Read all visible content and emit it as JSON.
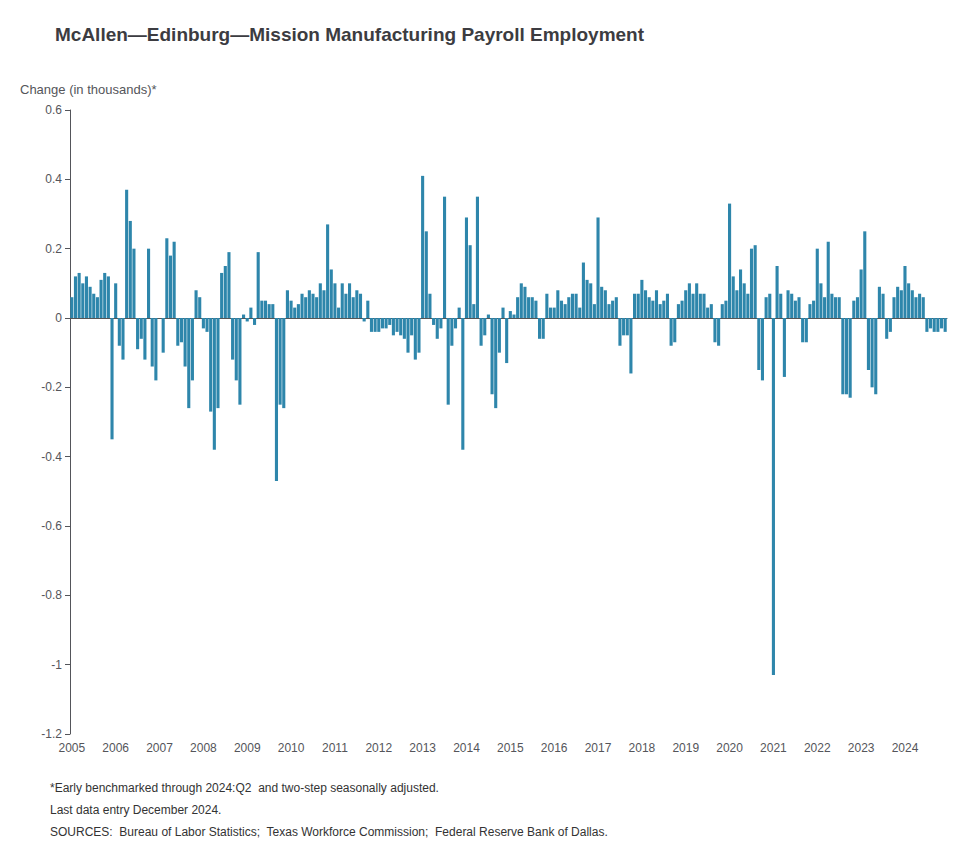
{
  "chart_data": {
    "type": "bar",
    "title": "McAllen—Edinburg—Mission Manufacturing Payroll Employment",
    "ylabel": "Change (in thousands)*",
    "annotations": [
      "*Early benchmarked through 2024:Q2  and two-step seasonally adjusted.",
      "Last data entry December 2024.",
      "SOURCES:  Bureau of Labor Statistics;  Texas Workforce Commission;  Federal Reserve Bank of Dallas."
    ],
    "color": "#2e86ab",
    "grid": false,
    "ylim": [
      -1.2,
      0.6
    ],
    "yticks": [
      -1.2,
      -1,
      -0.8,
      -0.6,
      -0.4,
      -0.2,
      0,
      0.2,
      0.4,
      0.6
    ],
    "categories": [
      "2005",
      null,
      null,
      null,
      null,
      null,
      null,
      null,
      null,
      null,
      null,
      null,
      "2006",
      null,
      null,
      null,
      null,
      null,
      null,
      null,
      null,
      null,
      null,
      null,
      "2007",
      null,
      null,
      null,
      null,
      null,
      null,
      null,
      null,
      null,
      null,
      null,
      "2008",
      null,
      null,
      null,
      null,
      null,
      null,
      null,
      null,
      null,
      null,
      null,
      "2009",
      null,
      null,
      null,
      null,
      null,
      null,
      null,
      null,
      null,
      null,
      null,
      "2010",
      null,
      null,
      null,
      null,
      null,
      null,
      null,
      null,
      null,
      null,
      null,
      "2011",
      null,
      null,
      null,
      null,
      null,
      null,
      null,
      null,
      null,
      null,
      null,
      "2012",
      null,
      null,
      null,
      null,
      null,
      null,
      null,
      null,
      null,
      null,
      null,
      "2013",
      null,
      null,
      null,
      null,
      null,
      null,
      null,
      null,
      null,
      null,
      null,
      "2014",
      null,
      null,
      null,
      null,
      null,
      null,
      null,
      null,
      null,
      null,
      null,
      "2015",
      null,
      null,
      null,
      null,
      null,
      null,
      null,
      null,
      null,
      null,
      null,
      "2016",
      null,
      null,
      null,
      null,
      null,
      null,
      null,
      null,
      null,
      null,
      null,
      "2017",
      null,
      null,
      null,
      null,
      null,
      null,
      null,
      null,
      null,
      null,
      null,
      "2018",
      null,
      null,
      null,
      null,
      null,
      null,
      null,
      null,
      null,
      null,
      null,
      "2019",
      null,
      null,
      null,
      null,
      null,
      null,
      null,
      null,
      null,
      null,
      null,
      "2020",
      null,
      null,
      null,
      null,
      null,
      null,
      null,
      null,
      null,
      null,
      null,
      "2021",
      null,
      null,
      null,
      null,
      null,
      null,
      null,
      null,
      null,
      null,
      null,
      "2022",
      null,
      null,
      null,
      null,
      null,
      null,
      null,
      null,
      null,
      null,
      null,
      "2023",
      null,
      null,
      null,
      null,
      null,
      null,
      null,
      null,
      null,
      null,
      null,
      "2024",
      null,
      null,
      null,
      null,
      null,
      null,
      null,
      null,
      null,
      null,
      null
    ],
    "values": [
      0.06,
      0.12,
      0.13,
      0.1,
      0.12,
      0.09,
      0.07,
      0.06,
      0.11,
      0.13,
      0.12,
      -0.35,
      0.1,
      -0.08,
      -0.12,
      0.37,
      0.28,
      0.2,
      -0.09,
      -0.06,
      -0.12,
      0.2,
      -0.14,
      -0.18,
      0.0,
      -0.1,
      0.23,
      0.18,
      0.22,
      -0.08,
      -0.07,
      -0.14,
      -0.26,
      -0.18,
      0.08,
      0.06,
      -0.03,
      -0.04,
      -0.27,
      -0.38,
      -0.26,
      0.13,
      0.15,
      0.19,
      -0.12,
      -0.18,
      -0.25,
      0.01,
      -0.01,
      0.03,
      -0.02,
      0.19,
      0.05,
      0.05,
      0.04,
      0.04,
      -0.47,
      -0.25,
      -0.26,
      0.08,
      0.05,
      0.03,
      0.04,
      0.07,
      0.06,
      0.08,
      0.07,
      0.06,
      0.1,
      0.08,
      0.27,
      0.14,
      0.1,
      0.03,
      0.1,
      0.07,
      0.1,
      0.06,
      0.08,
      0.07,
      -0.01,
      0.05,
      -0.04,
      -0.04,
      -0.04,
      -0.03,
      -0.03,
      -0.02,
      -0.05,
      -0.04,
      -0.05,
      -0.06,
      -0.1,
      -0.05,
      -0.12,
      -0.1,
      0.41,
      0.25,
      0.07,
      -0.02,
      -0.06,
      -0.03,
      0.35,
      -0.25,
      -0.08,
      -0.03,
      0.03,
      -0.38,
      0.29,
      0.21,
      0.04,
      0.35,
      -0.08,
      -0.05,
      0.01,
      -0.22,
      -0.26,
      -0.1,
      0.03,
      -0.13,
      0.02,
      0.01,
      0.06,
      0.1,
      0.09,
      0.06,
      0.06,
      0.05,
      -0.06,
      -0.06,
      0.07,
      0.03,
      0.03,
      0.08,
      0.05,
      0.04,
      0.06,
      0.07,
      0.07,
      0.03,
      0.16,
      0.11,
      0.1,
      0.04,
      0.29,
      0.09,
      0.08,
      0.04,
      0.05,
      0.06,
      -0.08,
      -0.05,
      -0.05,
      -0.16,
      0.07,
      0.07,
      0.11,
      0.08,
      0.06,
      0.05,
      0.08,
      0.04,
      0.05,
      0.07,
      -0.08,
      -0.07,
      0.04,
      0.05,
      0.08,
      0.1,
      0.07,
      0.1,
      0.07,
      0.07,
      0.03,
      0.04,
      -0.07,
      -0.08,
      0.04,
      0.05,
      0.33,
      0.12,
      0.08,
      0.14,
      0.1,
      0.07,
      0.2,
      0.21,
      -0.15,
      -0.18,
      0.06,
      0.07,
      -1.03,
      0.15,
      0.07,
      -0.17,
      0.08,
      0.07,
      0.05,
      0.06,
      -0.07,
      -0.07,
      0.04,
      0.05,
      0.2,
      0.1,
      0.06,
      0.22,
      0.07,
      0.06,
      0.06,
      -0.22,
      -0.22,
      -0.23,
      0.05,
      0.06,
      0.14,
      0.25,
      -0.15,
      -0.2,
      -0.22,
      0.09,
      0.07,
      -0.06,
      -0.04,
      0.06,
      0.09,
      0.08,
      0.15,
      0.1,
      0.08,
      0.06,
      0.07,
      0.06,
      -0.04,
      -0.03,
      -0.04,
      -0.04,
      -0.03,
      -0.04
    ]
  }
}
